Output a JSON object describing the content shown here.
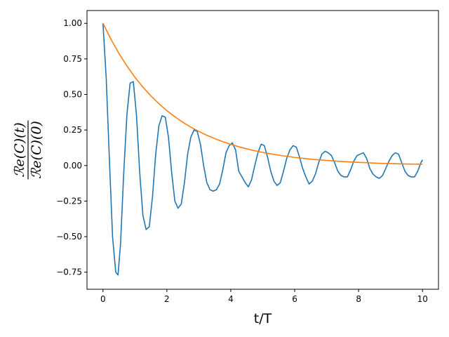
{
  "chart_data": {
    "type": "line",
    "xlabel": "t/T",
    "ylabel": {
      "numerator": "ℛe(C)(t)",
      "denominator": "ℛe(C)(0)"
    },
    "xlim": [
      -0.5,
      10.5
    ],
    "ylim": [
      -0.87,
      1.09
    ],
    "x_ticks": [
      0,
      2,
      4,
      6,
      8,
      10
    ],
    "x_tick_labels": [
      "0",
      "2",
      "4",
      "6",
      "8",
      "10"
    ],
    "y_ticks": [
      1.0,
      0.75,
      0.5,
      0.25,
      0.0,
      -0.25,
      -0.5,
      -0.75
    ],
    "y_tick_labels": [
      "1.00",
      "0.75",
      "0.50",
      "0.25",
      "0.00",
      "−0.25",
      "−0.50",
      "−0.75"
    ],
    "grid": false,
    "series": [
      {
        "color": "#1f77b4",
        "x": [
          0,
          0.1,
          0.2,
          0.3,
          0.4,
          0.47,
          0.55,
          0.65,
          0.75,
          0.85,
          0.95,
          1.05,
          1.15,
          1.25,
          1.35,
          1.45,
          1.55,
          1.65,
          1.75,
          1.85,
          1.95,
          2.05,
          2.15,
          2.25,
          2.35,
          2.45,
          2.55,
          2.65,
          2.75,
          2.85,
          2.95,
          3.05,
          3.15,
          3.25,
          3.35,
          3.45,
          3.55,
          3.65,
          3.75,
          3.85,
          3.95,
          4.05,
          4.15,
          4.25,
          4.35,
          4.45,
          4.55,
          4.65,
          4.75,
          4.85,
          4.95,
          5.05,
          5.15,
          5.25,
          5.35,
          5.45,
          5.55,
          5.65,
          5.75,
          5.85,
          5.95,
          6.05,
          6.15,
          6.25,
          6.35,
          6.45,
          6.55,
          6.65,
          6.75,
          6.85,
          6.95,
          7.05,
          7.15,
          7.25,
          7.35,
          7.45,
          7.55,
          7.65,
          7.75,
          7.85,
          7.95,
          8.05,
          8.15,
          8.25,
          8.35,
          8.45,
          8.55,
          8.65,
          8.75,
          8.85,
          8.95,
          9.05,
          9.15,
          9.25,
          9.35,
          9.45,
          9.55,
          9.65,
          9.75,
          9.85,
          9.95,
          10.0
        ],
        "y": [
          1.0,
          0.62,
          0.05,
          -0.5,
          -0.75,
          -0.77,
          -0.55,
          -0.05,
          0.36,
          0.58,
          0.59,
          0.35,
          -0.05,
          -0.35,
          -0.45,
          -0.43,
          -0.22,
          0.08,
          0.28,
          0.35,
          0.34,
          0.2,
          -0.05,
          -0.25,
          -0.3,
          -0.27,
          -0.12,
          0.08,
          0.2,
          0.25,
          0.24,
          0.15,
          0.0,
          -0.12,
          -0.17,
          -0.18,
          -0.17,
          -0.13,
          -0.03,
          0.09,
          0.14,
          0.16,
          0.11,
          -0.04,
          -0.08,
          -0.12,
          -0.15,
          -0.1,
          0.0,
          0.09,
          0.15,
          0.14,
          0.06,
          -0.04,
          -0.11,
          -0.14,
          -0.12,
          -0.04,
          0.05,
          0.11,
          0.14,
          0.13,
          0.06,
          -0.02,
          -0.08,
          -0.13,
          -0.11,
          -0.06,
          0.02,
          0.08,
          0.1,
          0.09,
          0.07,
          0.02,
          -0.04,
          -0.07,
          -0.08,
          -0.08,
          -0.03,
          0.03,
          0.07,
          0.08,
          0.09,
          0.05,
          -0.02,
          -0.06,
          -0.08,
          -0.09,
          -0.07,
          -0.02,
          0.03,
          0.07,
          0.09,
          0.08,
          0.02,
          -0.04,
          -0.07,
          -0.08,
          -0.08,
          -0.04,
          0.02,
          0.04
        ]
      },
      {
        "color": "#ff7f0e",
        "function": "exp(-t/2.1)",
        "x": [
          0,
          0.25,
          0.5,
          0.75,
          1,
          1.25,
          1.5,
          1.75,
          2,
          2.25,
          2.5,
          2.75,
          3,
          3.25,
          3.5,
          3.75,
          4,
          4.25,
          4.5,
          4.75,
          5,
          5.25,
          5.5,
          5.75,
          6,
          6.25,
          6.5,
          6.75,
          7,
          7.25,
          7.5,
          7.75,
          8,
          8.25,
          8.5,
          8.75,
          9,
          9.25,
          9.5,
          9.75,
          10
        ],
        "y": [
          1.0,
          0.888,
          0.788,
          0.7,
          0.621,
          0.551,
          0.49,
          0.435,
          0.386,
          0.343,
          0.304,
          0.27,
          0.24,
          0.213,
          0.189,
          0.168,
          0.149,
          0.132,
          0.117,
          0.104,
          0.092,
          0.082,
          0.073,
          0.065,
          0.057,
          0.051,
          0.045,
          0.04,
          0.036,
          0.032,
          0.028,
          0.025,
          0.022,
          0.02,
          0.017,
          0.015,
          0.014,
          0.012,
          0.011,
          0.01,
          0.009
        ]
      }
    ]
  }
}
